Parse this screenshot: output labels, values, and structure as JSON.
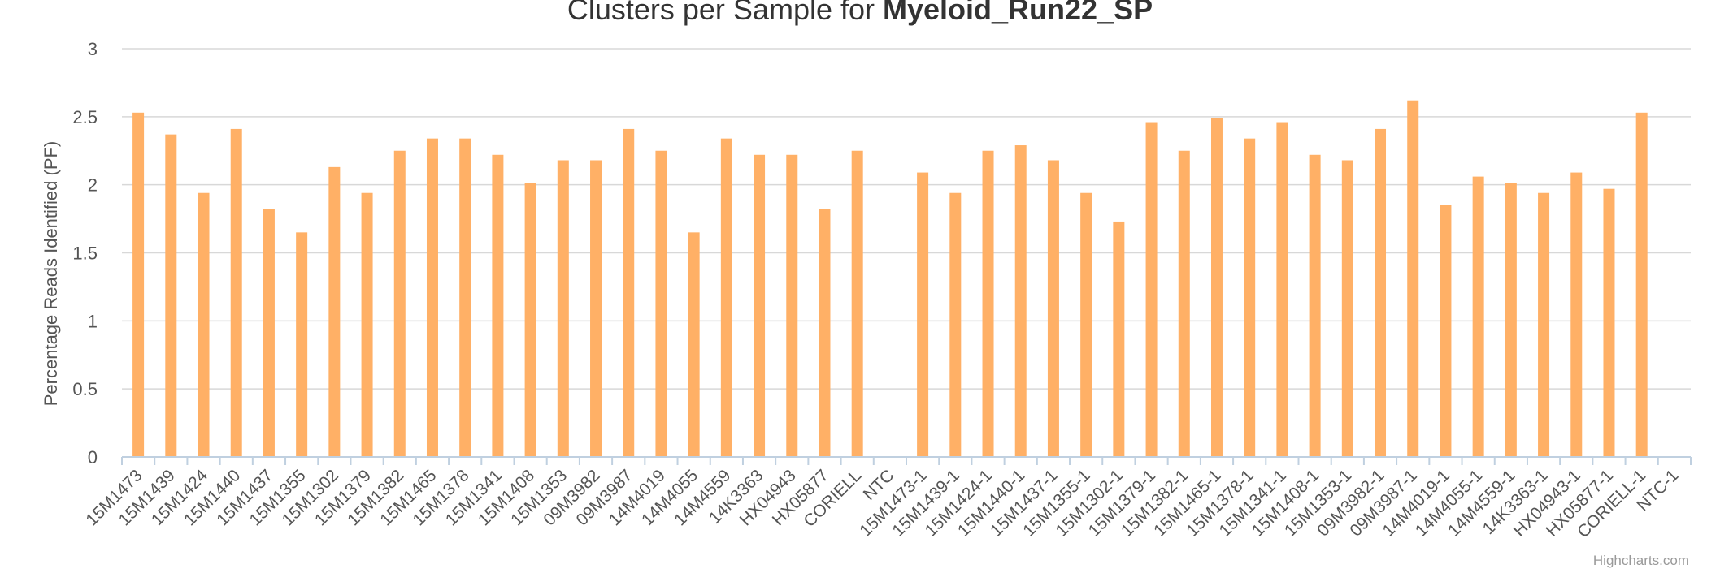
{
  "chart_data": {
    "type": "bar",
    "title": "Clusters per Sample for ",
    "title_bold": "Myeloid_Run22_SP",
    "xlabel": "",
    "ylabel": "Percentage Reads Identified (PF)",
    "ylim": [
      0,
      3
    ],
    "yticks": [
      "0",
      "0.5",
      "1",
      "1.5",
      "2",
      "2.5",
      "3"
    ],
    "grid": true,
    "legend": "none",
    "bar_color": "#ffb066",
    "credits": "Highcharts.com",
    "categories": [
      "15M1473",
      "15M1439",
      "15M1424",
      "15M1440",
      "15M1437",
      "15M1355",
      "15M1302",
      "15M1379",
      "15M1382",
      "15M1465",
      "15M1378",
      "15M1341",
      "15M1408",
      "15M1353",
      "09M3982",
      "09M3987",
      "14M4019",
      "14M4055",
      "14M4559",
      "14K3363",
      "HX04943",
      "HX05877",
      "CORIELL",
      "NTC",
      "15M1473-1",
      "15M1439-1",
      "15M1424-1",
      "15M1440-1",
      "15M1437-1",
      "15M1355-1",
      "15M1302-1",
      "15M1379-1",
      "15M1382-1",
      "15M1465-1",
      "15M1378-1",
      "15M1341-1",
      "15M1408-1",
      "15M1353-1",
      "09M3982-1",
      "09M3987-1",
      "14M4019-1",
      "14M4055-1",
      "14M4559-1",
      "14K3363-1",
      "HX04943-1",
      "HX05877-1",
      "CORIELL-1",
      "NTC-1"
    ],
    "values": [
      2.53,
      2.37,
      1.94,
      2.41,
      1.82,
      1.65,
      2.13,
      1.94,
      2.25,
      2.34,
      2.34,
      2.22,
      2.01,
      2.18,
      2.18,
      2.41,
      2.25,
      1.65,
      2.34,
      2.22,
      2.22,
      1.82,
      2.25,
      0,
      2.09,
      1.94,
      2.25,
      2.29,
      2.18,
      1.94,
      1.73,
      2.46,
      2.25,
      2.49,
      2.34,
      2.46,
      2.22,
      2.18,
      2.41,
      2.62,
      1.85,
      2.06,
      2.01,
      1.94,
      2.09,
      1.97,
      2.53,
      0
    ]
  }
}
